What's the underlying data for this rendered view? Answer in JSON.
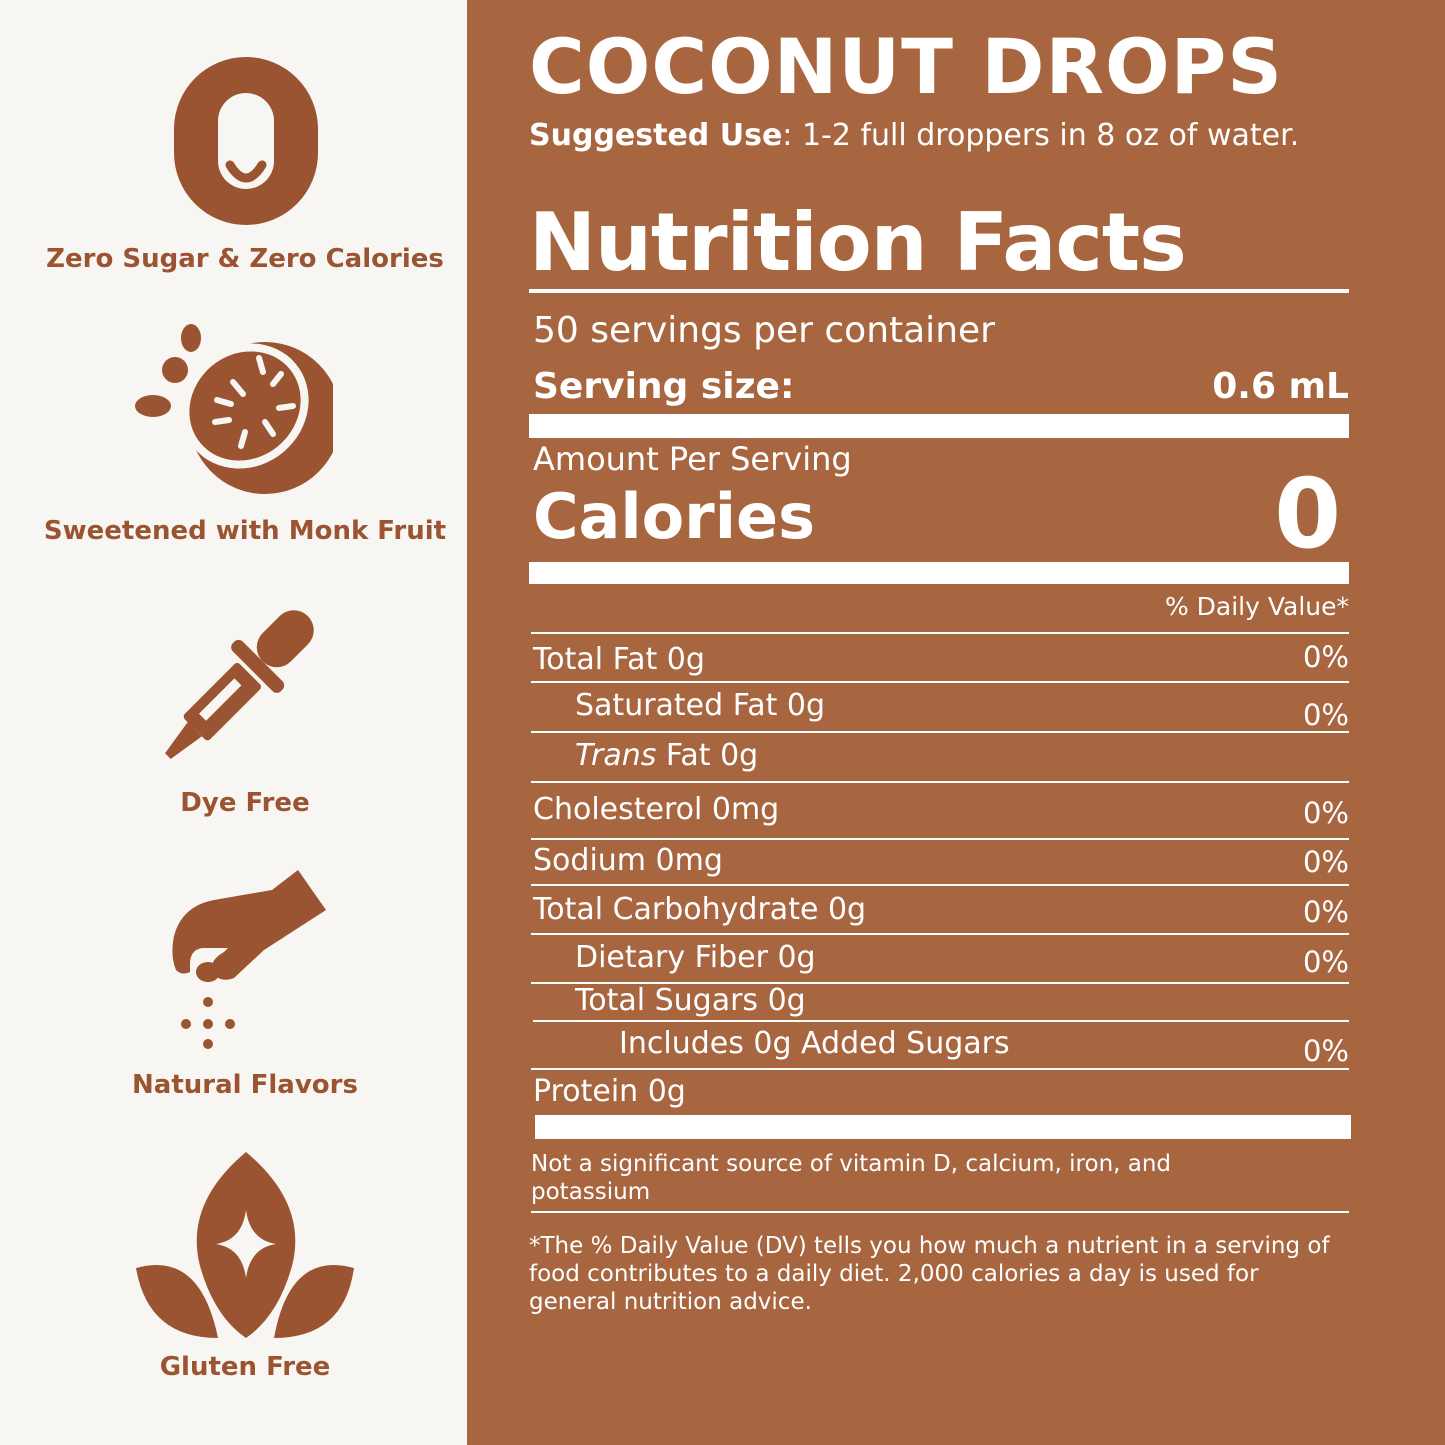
{
  "colors": {
    "panel": "#a86640",
    "icon": "#9a5431",
    "background": "#f8f6f3",
    "text_on_panel": "#ffffff"
  },
  "features": [
    {
      "icon": "zero-icon",
      "label": "Zero Sugar & Zero Calories"
    },
    {
      "icon": "citrus-fruit-icon",
      "label": "Sweetened with Monk Fruit"
    },
    {
      "icon": "dropper-icon",
      "label": "Dye Free"
    },
    {
      "icon": "pinch-hand-icon",
      "label": "Natural Flavors"
    },
    {
      "icon": "leaf-sparkle-icon",
      "label": "Gluten Free"
    }
  ],
  "product": {
    "name": "COCONUT DROPS",
    "suggested_use_label": "Suggested Use",
    "suggested_use_text": ": 1-2 full droppers in 8 oz of water."
  },
  "label": {
    "heading": "Nutrition Facts",
    "servings": "50 servings per container",
    "serving_size_label": "Serving size:",
    "serving_size_value": "0.6 mL",
    "amount_per_serving": "Amount Per Serving",
    "calories_label": "Calories",
    "calories_value": "0",
    "dv_header": "% Daily Value*",
    "total_fat": {
      "label": "Total Fat 0g",
      "dv": "0%"
    },
    "saturated_fat": {
      "label": "Saturated Fat 0g",
      "dv": "0%"
    },
    "trans_fat": {
      "label_italic": "Trans",
      "label_rest": " Fat 0g"
    },
    "cholesterol": {
      "label": "Cholesterol 0mg",
      "dv": "0%"
    },
    "sodium": {
      "label": "Sodium 0mg",
      "dv": "0%"
    },
    "total_carb": {
      "label": "Total Carbohydrate 0g",
      "dv": "0%"
    },
    "dietary_fiber": {
      "label": "Dietary Fiber 0g",
      "dv": "0%"
    },
    "total_sugars": {
      "label": "Total Sugars 0g"
    },
    "added_sugars": {
      "label": "Includes 0g Added Sugars",
      "dv": "0%"
    },
    "protein": {
      "label": "Protein 0g"
    },
    "not_significant": "Not a significant source of vitamin D, calcium, iron, and potassium",
    "footnote": "*The % Daily Value (DV) tells you how much a nutrient in a serving of food contributes to a daily diet. 2,000 calories a day is used for general nutrition advice."
  }
}
